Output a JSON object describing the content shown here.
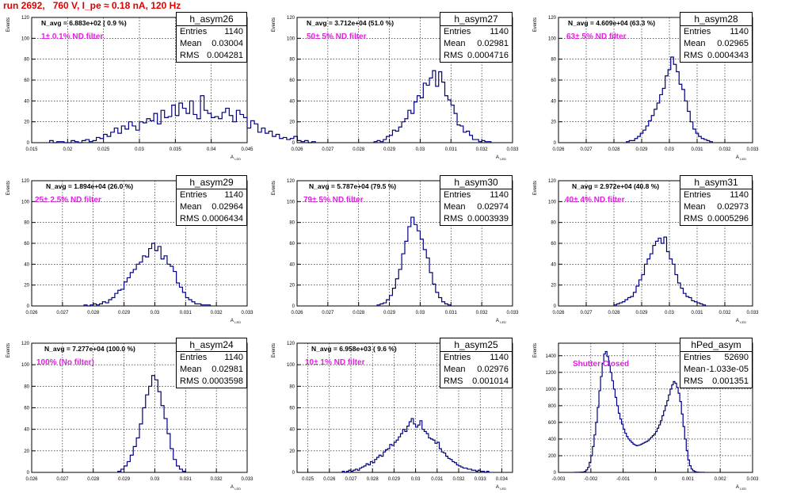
{
  "title": "run 2692,   760 V, I_pe ≈ 0.18 nA, 120 Hz",
  "chart_data": [
    {
      "type": "histogram",
      "name": "h_asym26",
      "stats": {
        "entries": "1140",
        "mean": "0.03004",
        "rms": "0.004281"
      },
      "n_avg": "N_avg = 6.883e+02 ( 0.9 %)",
      "filter": "1± 0.1% ND filter",
      "xlabel": "A",
      "xlabel_sub": "LED",
      "ylabel": "Events",
      "xlim": [
        0.015,
        0.045
      ],
      "ylim": [
        0,
        120
      ],
      "xticks": [
        0.015,
        0.02,
        0.025,
        0.03,
        0.035,
        0.04,
        0.045
      ],
      "xtick_labels": [
        "0.015",
        "0.02",
        "0.025",
        "0.03",
        "0.035",
        "0.04",
        "0.045"
      ],
      "yticks": [
        0,
        20,
        40,
        60,
        80,
        100,
        120
      ],
      "x_start": 0.0175,
      "x_step": 0.0005,
      "values": [
        2,
        0,
        1,
        1,
        0,
        0,
        2,
        1,
        0,
        2,
        3,
        1,
        2,
        5,
        4,
        8,
        6,
        10,
        14,
        9,
        16,
        13,
        20,
        16,
        12,
        20,
        19,
        23,
        21,
        28,
        18,
        31,
        24,
        25,
        36,
        26,
        38,
        33,
        28,
        40,
        27,
        23,
        45,
        31,
        28,
        24,
        25,
        23,
        29,
        33,
        26,
        20,
        31,
        27,
        24,
        14,
        21,
        18,
        10,
        14,
        9,
        11,
        6,
        8,
        4,
        5,
        3,
        4,
        6,
        2,
        1,
        2,
        0,
        1
      ]
    },
    {
      "type": "histogram",
      "name": "h_asym27",
      "stats": {
        "entries": "1140",
        "mean": "0.02981",
        "rms": "0.0004716"
      },
      "n_avg": "N_avg = 3.712e+04 (51.0 %)",
      "filter": "50± 5% ND filter",
      "xlabel": "A",
      "xlabel_sub": "LED",
      "ylabel": "Events",
      "xlim": [
        0.026,
        0.033
      ],
      "ylim": [
        0,
        120
      ],
      "xticks": [
        0.026,
        0.027,
        0.028,
        0.029,
        0.03,
        0.031,
        0.032,
        0.033
      ],
      "xtick_labels": [
        "0.026",
        "0.027",
        "0.028",
        "0.029",
        "0.03",
        "0.031",
        "0.032",
        "0.033"
      ],
      "yticks": [
        0,
        20,
        40,
        60,
        80,
        100,
        120
      ],
      "x_start": 0.0285,
      "x_step": 0.0001,
      "values": [
        1,
        2,
        1,
        3,
        6,
        7,
        12,
        11,
        15,
        20,
        23,
        31,
        28,
        39,
        45,
        43,
        57,
        55,
        62,
        69,
        54,
        68,
        58,
        45,
        41,
        36,
        28,
        17,
        16,
        10,
        11,
        7,
        3,
        3,
        1,
        2,
        1,
        1
      ]
    },
    {
      "type": "histogram",
      "name": "h_asym28",
      "stats": {
        "entries": "1140",
        "mean": "0.02965",
        "rms": "0.0004343"
      },
      "n_avg": "N_avg = 4.609e+04 (63.3 %)",
      "filter": "63± 5% ND filter",
      "xlabel": "A",
      "xlabel_sub": "LED",
      "ylabel": "Events",
      "xlim": [
        0.026,
        0.033
      ],
      "ylim": [
        0,
        120
      ],
      "xticks": [
        0.026,
        0.027,
        0.028,
        0.029,
        0.03,
        0.031,
        0.032,
        0.033
      ],
      "xtick_labels": [
        "0.026",
        "0.027",
        "0.028",
        "0.029",
        "0.03",
        "0.031",
        "0.032",
        "0.033"
      ],
      "yticks": [
        0,
        20,
        40,
        60,
        80,
        100,
        120
      ],
      "x_start": 0.02845,
      "x_step": 0.0001,
      "values": [
        1,
        2,
        2,
        4,
        6,
        9,
        12,
        16,
        21,
        26,
        32,
        38,
        46,
        52,
        64,
        70,
        82,
        75,
        68,
        56,
        51,
        40,
        30,
        20,
        13,
        9,
        6,
        4,
        3,
        2,
        1
      ]
    },
    {
      "type": "histogram",
      "name": "h_asym29",
      "stats": {
        "entries": "1140",
        "mean": "0.02964",
        "rms": "0.0006434"
      },
      "n_avg": "N_avg = 1.894e+04 (26.0 %)",
      "filter": "25± 2.5% ND filter",
      "xlabel": "A",
      "xlabel_sub": "LED",
      "ylabel": "Events",
      "xlim": [
        0.026,
        0.033
      ],
      "ylim": [
        0,
        120
      ],
      "xticks": [
        0.026,
        0.027,
        0.028,
        0.029,
        0.03,
        0.031,
        0.032,
        0.033
      ],
      "xtick_labels": [
        "0.026",
        "0.027",
        "0.028",
        "0.029",
        "0.03",
        "0.031",
        "0.032",
        "0.033"
      ],
      "yticks": [
        0,
        20,
        40,
        60,
        80,
        100,
        120
      ],
      "x_start": 0.0277,
      "x_step": 0.0001,
      "values": [
        1,
        0,
        1,
        2,
        1,
        2,
        4,
        3,
        6,
        8,
        12,
        15,
        16,
        23,
        27,
        32,
        35,
        40,
        42,
        48,
        47,
        55,
        60,
        53,
        57,
        45,
        48,
        40,
        38,
        33,
        22,
        18,
        13,
        8,
        6,
        4,
        2,
        2,
        1,
        1,
        1
      ]
    },
    {
      "type": "histogram",
      "name": "h_asym30",
      "stats": {
        "entries": "1140",
        "mean": "0.02974",
        "rms": "0.0003939"
      },
      "n_avg": "N_avg = 5.787e+04 (79.5 %)",
      "filter": "79± 5% ND filter",
      "xlabel": "A",
      "xlabel_sub": "LED",
      "ylabel": "Events",
      "xlim": [
        0.026,
        0.033
      ],
      "ylim": [
        0,
        120
      ],
      "xticks": [
        0.026,
        0.027,
        0.028,
        0.029,
        0.03,
        0.031,
        0.032,
        0.033
      ],
      "xtick_labels": [
        "0.026",
        "0.027",
        "0.028",
        "0.029",
        "0.03",
        "0.031",
        "0.032",
        "0.033"
      ],
      "yticks": [
        0,
        20,
        40,
        60,
        80,
        100,
        120
      ],
      "x_start": 0.0286,
      "x_step": 0.0001,
      "values": [
        1,
        2,
        3,
        6,
        10,
        17,
        26,
        35,
        50,
        62,
        76,
        85,
        78,
        72,
        64,
        54,
        46,
        32,
        21,
        13,
        8,
        4,
        2,
        1
      ]
    },
    {
      "type": "histogram",
      "name": "h_asym31",
      "stats": {
        "entries": "1140",
        "mean": "0.02973",
        "rms": "0.0005296"
      },
      "n_avg": "N_avg = 2.972e+04 (40.8 %)",
      "filter": "40± 4% ND filter",
      "xlabel": "A",
      "xlabel_sub": "LED",
      "ylabel": "Events",
      "xlim": [
        0.026,
        0.033
      ],
      "ylim": [
        0,
        120
      ],
      "xticks": [
        0.026,
        0.027,
        0.028,
        0.029,
        0.03,
        0.031,
        0.032,
        0.033
      ],
      "xtick_labels": [
        "0.026",
        "0.027",
        "0.028",
        "0.029",
        "0.03",
        "0.031",
        "0.032",
        "0.033"
      ],
      "yticks": [
        0,
        20,
        40,
        60,
        80,
        100,
        120
      ],
      "x_start": 0.028,
      "x_step": 0.0001,
      "values": [
        1,
        2,
        3,
        4,
        6,
        8,
        9,
        13,
        19,
        25,
        30,
        40,
        45,
        50,
        58,
        62,
        65,
        60,
        66,
        52,
        45,
        40,
        30,
        22,
        17,
        12,
        9,
        8,
        5,
        4,
        3,
        2,
        1
      ]
    },
    {
      "type": "histogram",
      "name": "h_asym24",
      "stats": {
        "entries": "1140",
        "mean": "0.02981",
        "rms": "0.0003598"
      },
      "n_avg": "N_avg = 7.277e+04 (100.0 %)",
      "filter": "100% (No filter)",
      "xlabel": "A",
      "xlabel_sub": "LED",
      "ylabel": "Events",
      "xlim": [
        0.026,
        0.033
      ],
      "ylim": [
        0,
        120
      ],
      "xticks": [
        0.026,
        0.027,
        0.028,
        0.029,
        0.03,
        0.031,
        0.032,
        0.033
      ],
      "xtick_labels": [
        "0.026",
        "0.027",
        "0.028",
        "0.029",
        "0.03",
        "0.031",
        "0.032",
        "0.033"
      ],
      "yticks": [
        0,
        20,
        40,
        60,
        80,
        100,
        120
      ],
      "x_start": 0.0288,
      "x_step": 0.0001,
      "values": [
        1,
        3,
        6,
        10,
        16,
        24,
        32,
        45,
        60,
        72,
        80,
        90,
        86,
        75,
        62,
        50,
        36,
        22,
        12,
        6,
        3,
        1
      ]
    },
    {
      "type": "histogram",
      "name": "h_asym25",
      "stats": {
        "entries": "1140",
        "mean": "0.02976",
        "rms": "0.001014"
      },
      "n_avg": "N_avg = 6.958e+03 ( 9.6 %)",
      "filter": "10± 1% ND filter",
      "xlabel": "A",
      "xlabel_sub": "LED",
      "ylabel": "Events",
      "xlim": [
        0.0245,
        0.0345
      ],
      "ylim": [
        0,
        120
      ],
      "xticks": [
        0.025,
        0.026,
        0.027,
        0.028,
        0.029,
        0.03,
        0.031,
        0.032,
        0.033,
        0.034
      ],
      "xtick_labels": [
        "0.025",
        "0.026",
        "0.027",
        "0.028",
        "0.029",
        "0.03",
        "0.031",
        "0.032",
        "0.033",
        "0.034"
      ],
      "yticks": [
        0,
        20,
        40,
        60,
        80,
        100,
        120
      ],
      "x_start": 0.0266,
      "x_step": 0.0001,
      "values": [
        1,
        0,
        1,
        2,
        1,
        2,
        3,
        2,
        4,
        5,
        6,
        8,
        7,
        10,
        9,
        12,
        14,
        16,
        15,
        19,
        21,
        22,
        26,
        25,
        28,
        30,
        33,
        36,
        40,
        38,
        43,
        47,
        50,
        45,
        42,
        44,
        48,
        40,
        38,
        36,
        32,
        31,
        30,
        27,
        28,
        22,
        19,
        18,
        15,
        13,
        12,
        10,
        9,
        7,
        6,
        5,
        4,
        4,
        3,
        3,
        2,
        2,
        1,
        2,
        1,
        1,
        0,
        1
      ]
    },
    {
      "type": "histogram",
      "name": "hPed_asym",
      "stats": {
        "entries": "52690",
        "mean": "-1.033e-05",
        "rms": "0.001351"
      },
      "n_avg": "",
      "filter": "Shutter Closed",
      "xlabel": "A",
      "xlabel_sub": "LED",
      "ylabel": "Events",
      "xlim": [
        -0.003,
        0.003
      ],
      "ylim": [
        0,
        1550
      ],
      "xticks": [
        -0.003,
        -0.002,
        -0.001,
        0,
        0.001,
        0.002,
        0.003
      ],
      "xtick_labels": [
        "-0.003",
        "-0.002",
        "-0.001",
        "0",
        "0.001",
        "0.002",
        "0.003"
      ],
      "yticks": [
        0,
        200,
        400,
        600,
        800,
        1000,
        1200,
        1400
      ],
      "x_start": -0.0025,
      "x_step": 5e-05,
      "values": [
        1,
        1,
        2,
        3,
        4,
        5,
        12,
        30,
        60,
        120,
        200,
        310,
        450,
        600,
        780,
        980,
        1150,
        1310,
        1420,
        1450,
        1390,
        1280,
        1200,
        1100,
        1000,
        900,
        800,
        710,
        640,
        580,
        520,
        470,
        430,
        400,
        380,
        360,
        340,
        330,
        320,
        325,
        330,
        340,
        350,
        360,
        370,
        380,
        400,
        420,
        440,
        460,
        490,
        530,
        570,
        620,
        680,
        740,
        800,
        860,
        930,
        1000,
        1050,
        1090,
        1070,
        1020,
        950,
        850,
        700,
        550,
        400,
        260,
        150,
        80,
        40,
        20,
        10,
        5,
        3,
        2,
        1,
        1
      ]
    }
  ]
}
